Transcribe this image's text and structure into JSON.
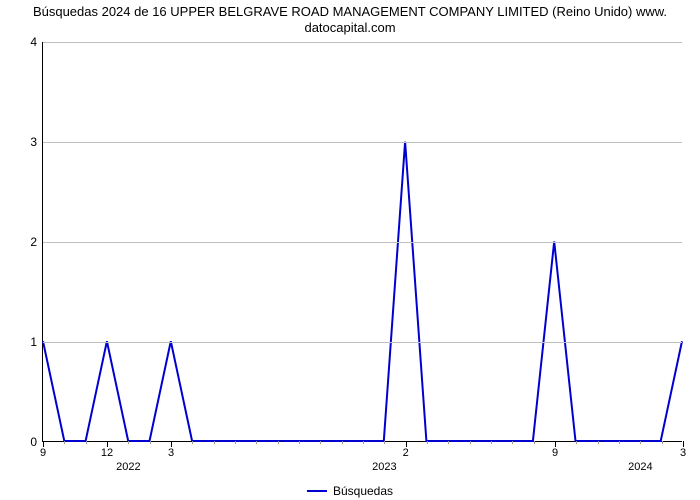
{
  "chart": {
    "type": "line",
    "title_line1": "Búsquedas 2024 de 16 UPPER BELGRAVE ROAD MANAGEMENT COMPANY LIMITED (Reino Unido) www.",
    "title_line2": "datocapital.com",
    "title_fontsize": 13,
    "background_color": "#ffffff",
    "grid_color": "#bfbfbf",
    "axis_color": "#000000",
    "line_color": "#0000d0",
    "line_width": 2,
    "ylim": [
      0,
      4
    ],
    "ytick_step": 1,
    "yticks": [
      0,
      1,
      2,
      3,
      4
    ],
    "xticks_major": [
      {
        "idx": 0,
        "label": "9"
      },
      {
        "idx": 3,
        "label": "12"
      },
      {
        "idx": 6,
        "label": "3"
      },
      {
        "idx": 17,
        "label": "2"
      },
      {
        "idx": 24,
        "label": "9"
      },
      {
        "idx": 30,
        "label": "3"
      }
    ],
    "year_ticks": [
      {
        "idx": 4,
        "label": "2022"
      },
      {
        "idx": 16,
        "label": "2023"
      },
      {
        "idx": 28,
        "label": "2024"
      }
    ],
    "n_points": 31,
    "values": [
      1,
      0,
      0,
      1,
      0,
      0,
      1,
      0,
      0,
      0,
      0,
      0,
      0,
      0,
      0,
      0,
      0,
      3,
      0,
      0,
      0,
      0,
      0,
      0,
      2,
      0,
      0,
      0,
      0,
      0,
      1
    ],
    "legend_label": "Búsquedas",
    "label_fontsize": 12
  }
}
